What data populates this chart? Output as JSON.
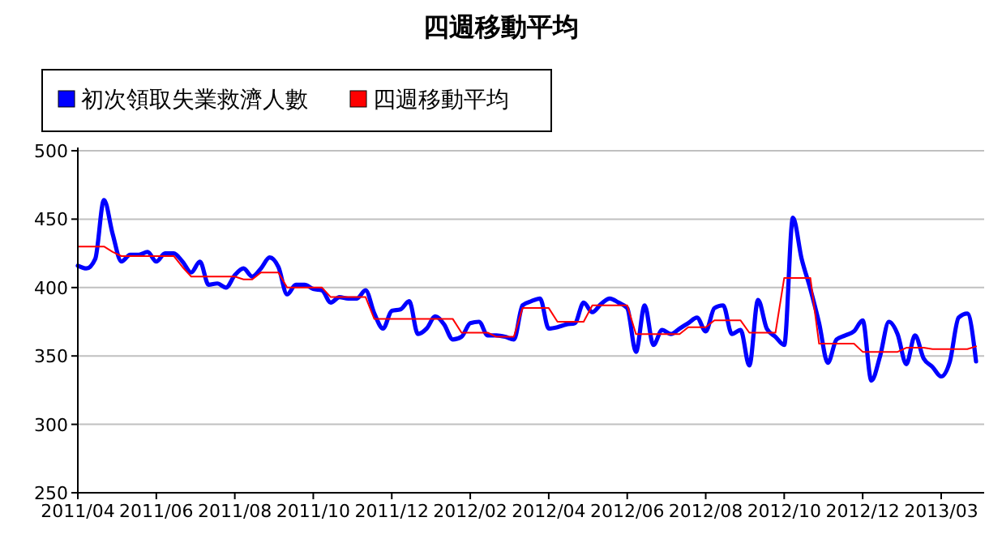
{
  "chart_data": {
    "type": "line",
    "title": "四週移動平均",
    "categories": [
      "2011/04",
      null,
      null,
      null,
      null,
      null,
      null,
      null,
      null,
      "2011/06",
      null,
      null,
      null,
      null,
      null,
      null,
      null,
      null,
      "2011/08",
      null,
      null,
      null,
      null,
      null,
      null,
      null,
      null,
      "2011/10",
      null,
      null,
      null,
      null,
      null,
      null,
      null,
      null,
      "2011/12",
      null,
      null,
      null,
      null,
      null,
      null,
      null,
      null,
      "2012/02",
      null,
      null,
      null,
      null,
      null,
      null,
      null,
      null,
      "2012/04",
      null,
      null,
      null,
      null,
      null,
      null,
      null,
      null,
      "2012/06",
      null,
      null,
      null,
      null,
      null,
      null,
      null,
      null,
      "2012/08",
      null,
      null,
      null,
      null,
      null,
      null,
      null,
      null,
      "2012/10",
      null,
      null,
      null,
      null,
      null,
      null,
      null,
      null,
      "2012/12",
      null,
      null,
      null,
      null,
      null,
      null,
      null,
      null,
      "2013/03",
      null,
      null,
      null,
      null
    ],
    "series": [
      {
        "name": "初次領取失業救濟人數",
        "color": "#0000ff",
        "values": [
          416,
          414,
          421,
          464,
          439,
          419,
          424,
          424,
          426,
          419,
          425,
          425,
          419,
          411,
          419,
          402,
          403,
          400,
          409,
          414,
          408,
          414,
          422,
          415,
          395,
          402,
          402,
          399,
          398,
          389,
          393,
          392,
          392,
          398,
          381,
          370,
          383,
          384,
          390,
          366,
          370,
          379,
          373,
          362,
          364,
          374,
          375,
          365,
          365,
          364,
          362,
          387,
          390,
          392,
          370,
          371,
          373,
          374,
          389,
          382,
          388,
          392,
          389,
          385,
          353,
          387,
          358,
          369,
          366,
          370,
          374,
          378,
          368,
          385,
          387,
          366,
          369,
          343,
          391,
          370,
          364,
          358,
          451,
          421,
          399,
          374,
          345,
          362,
          365,
          368,
          376,
          332,
          350,
          375,
          366,
          344,
          365,
          348,
          342,
          335,
          346,
          378,
          381,
          346
        ]
      },
      {
        "name": "四週移動平均",
        "color": "#ff0000",
        "values": [
          430,
          430,
          430,
          430,
          426,
          423,
          423,
          423,
          423,
          423,
          423,
          423,
          415,
          408,
          408,
          408,
          408,
          408,
          408,
          406,
          406,
          411,
          411,
          411,
          400,
          400,
          400,
          400,
          400,
          393,
          393,
          393,
          393,
          393,
          377,
          377,
          377,
          377,
          377,
          377,
          377,
          377,
          377,
          377,
          367,
          367,
          367,
          367,
          364,
          364,
          364,
          385,
          385,
          385,
          385,
          375,
          375,
          375,
          375,
          387,
          387,
          387,
          387,
          387,
          366,
          366,
          366,
          366,
          366,
          366,
          371,
          371,
          371,
          376,
          376,
          376,
          376,
          367,
          367,
          367,
          367,
          407,
          407,
          407,
          407,
          359,
          359,
          359,
          359,
          359,
          353,
          353,
          353,
          353,
          353,
          356,
          356,
          356,
          355,
          355,
          355,
          355,
          355,
          357
        ]
      }
    ],
    "ylim": [
      250,
      500
    ],
    "yticks": [
      250,
      300,
      350,
      400,
      450,
      500
    ],
    "grid": "y",
    "legend": "top left",
    "marker": "none",
    "line_style": "solid"
  }
}
